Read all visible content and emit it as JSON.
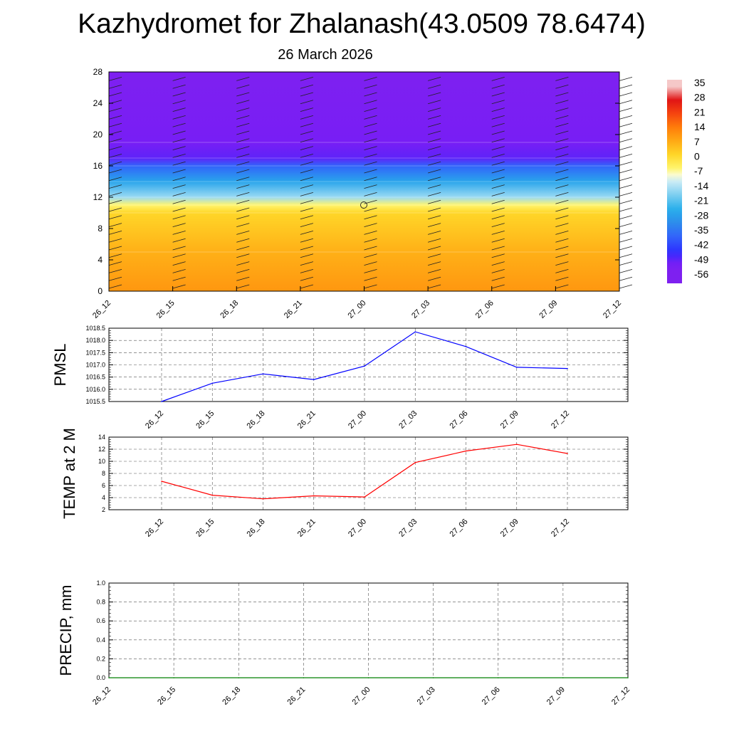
{
  "title": "Kazhydromet for Zhalanash(43.0509 78.6474)",
  "subtitle": "26 March 2026",
  "chart_data": [
    {
      "type": "heatmap",
      "name": "temperature-profile",
      "x_ticks": [
        "26_12",
        "26_15",
        "26_18",
        "26_21",
        "27_00",
        "27_03",
        "27_06",
        "27_09",
        "27_12"
      ],
      "y_ticks": [
        0,
        4,
        8,
        12,
        16,
        20,
        24,
        28
      ],
      "ylim": [
        0,
        28
      ],
      "colorbar_labels": [
        35,
        28,
        21,
        14,
        7,
        0,
        -7,
        -14,
        -21,
        -28,
        -35,
        -42,
        -49,
        -56
      ],
      "profile": [
        {
          "level": 0,
          "value": 10
        },
        {
          "level": 5,
          "value": 6
        },
        {
          "level": 10,
          "value": 0
        },
        {
          "level": 11,
          "value": -7
        },
        {
          "level": 12,
          "value": -18
        },
        {
          "level": 14,
          "value": -30
        },
        {
          "level": 16,
          "value": -42
        },
        {
          "level": 17,
          "value": -54
        },
        {
          "level": 19,
          "value": -56
        },
        {
          "level": 28,
          "value": -60
        }
      ]
    },
    {
      "type": "line",
      "name": "pmsl",
      "ylabel": "PMSL",
      "x": [
        "26_12",
        "26_15",
        "26_18",
        "26_21",
        "27_00",
        "27_03",
        "27_06",
        "27_09",
        "27_12"
      ],
      "values": [
        1015.5,
        1016.25,
        1016.63,
        1016.4,
        1016.95,
        1018.35,
        1017.75,
        1016.9,
        1016.85
      ],
      "ylim": [
        1015.5,
        1018.5
      ],
      "y_ticks": [
        "1015.5",
        "1016.0",
        "1016.5",
        "1017.0",
        "1017.5",
        "1018.0",
        "1018.5"
      ],
      "color": "#0000ff",
      "grid": true
    },
    {
      "type": "line",
      "name": "temp-2m",
      "ylabel": "TEMP at 2 M",
      "x": [
        "26_12",
        "26_15",
        "26_18",
        "26_21",
        "27_00",
        "27_03",
        "27_06",
        "27_09",
        "27_12"
      ],
      "values": [
        6.7,
        4.4,
        3.8,
        4.3,
        4.1,
        9.8,
        11.7,
        12.8,
        11.3
      ],
      "ylim": [
        2,
        14
      ],
      "y_ticks": [
        "2",
        "4",
        "6",
        "8",
        "10",
        "12",
        "14"
      ],
      "color": "#ff0000",
      "grid": true
    },
    {
      "type": "line",
      "name": "precip",
      "ylabel": "PRECIP, mm",
      "x": [
        "26_12",
        "26_15",
        "26_18",
        "26_21",
        "27_00",
        "27_03",
        "27_06",
        "27_09",
        "27_12"
      ],
      "values": [
        0,
        0,
        0,
        0,
        0,
        0,
        0,
        0,
        0
      ],
      "ylim": [
        0,
        1
      ],
      "y_ticks": [
        "0.0",
        "0.2",
        "0.4",
        "0.6",
        "0.8",
        "1.0"
      ],
      "color": "#008000",
      "grid": true
    }
  ]
}
